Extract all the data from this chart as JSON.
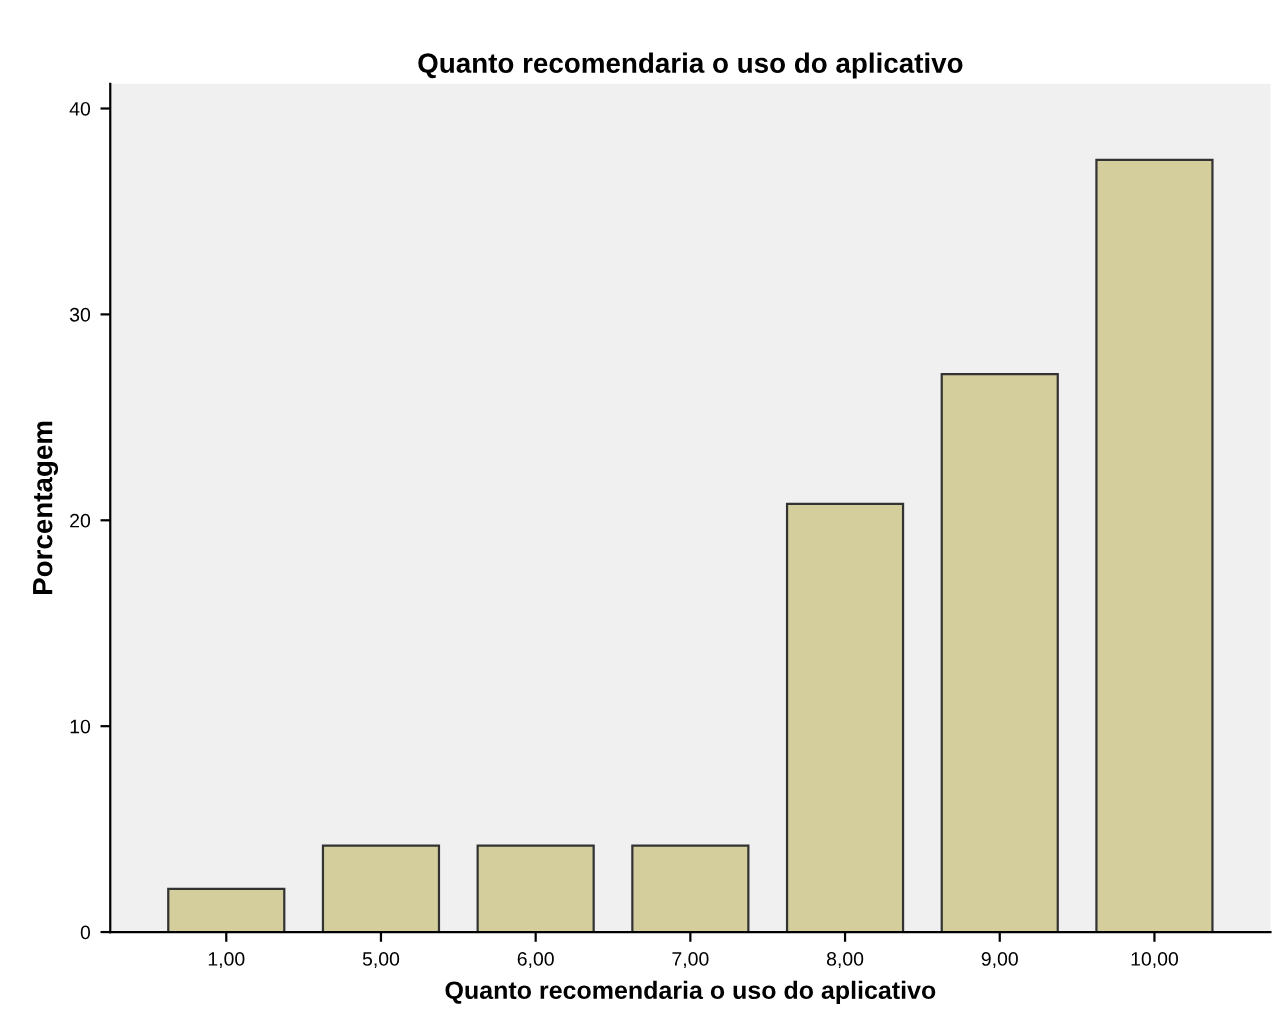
{
  "chart_data": {
    "type": "bar",
    "title": "Quanto recomendaria o uso do aplicativo",
    "xlabel": "Quanto recomendaria o uso do aplicativo",
    "ylabel": "Porcentagem",
    "categories": [
      "1,00",
      "5,00",
      "6,00",
      "7,00",
      "8,00",
      "9,00",
      "10,00"
    ],
    "values": [
      2.1,
      4.2,
      4.2,
      4.2,
      20.8,
      27.1,
      37.5
    ],
    "color": "#d3ce9c",
    "ylim": [
      0,
      41.2
    ],
    "yticks": [
      0,
      10,
      20,
      30,
      40
    ],
    "grid": false
  }
}
